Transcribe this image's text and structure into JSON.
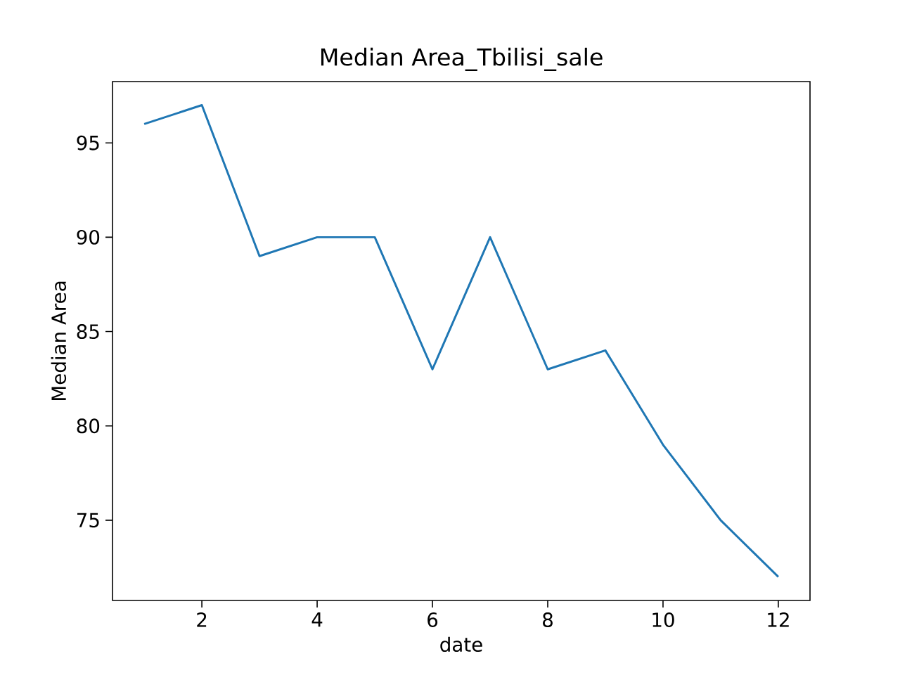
{
  "chart_data": {
    "type": "line",
    "title": "Median Area_Tbilisi_sale",
    "xlabel": "date",
    "ylabel": "Median Area",
    "x": [
      1,
      2,
      3,
      4,
      5,
      6,
      7,
      8,
      9,
      10,
      11,
      12
    ],
    "values": [
      96,
      97,
      89,
      90,
      90,
      83,
      90,
      83,
      84,
      79,
      75,
      72
    ],
    "color": "#1f77b4",
    "xlim": [
      0.45,
      12.55
    ],
    "ylim": [
      70.75,
      98.25
    ],
    "xticks": [
      2,
      4,
      6,
      8,
      10,
      12
    ],
    "yticks": [
      75,
      80,
      85,
      90,
      95
    ]
  }
}
